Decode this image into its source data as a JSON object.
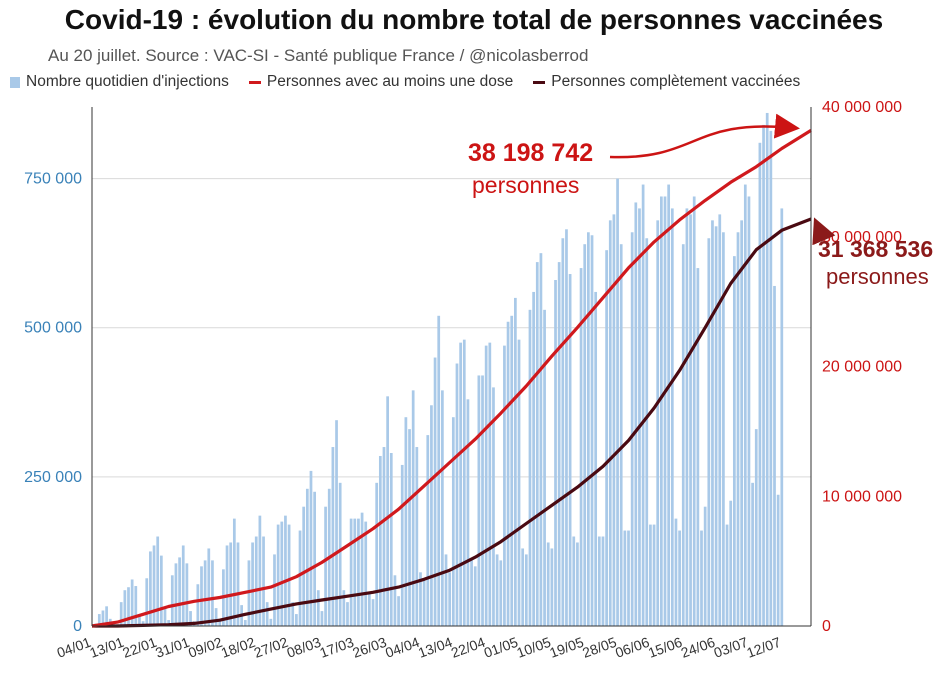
{
  "title": "Covid-19 : évolution du nombre total de personnes vaccinées",
  "subtitle": "Au 20 juillet. Source : VAC-SI - Santé publique France / @nicolasberrod",
  "colors": {
    "bars": "#a9c9e8",
    "first_dose": "#d0191d",
    "complete": "#4a0a12",
    "left_axis": "#3a82b8",
    "right_axis": "#cc1414"
  },
  "annotations": {
    "first_dose_value": "38 198 742",
    "first_dose_unit": "personnes",
    "complete_value": "31 368 536",
    "complete_unit": "personnes"
  },
  "chart_data": {
    "type": "bar+line",
    "legend": [
      {
        "key": "daily",
        "label": "Nombre quotidien d'injections",
        "marker": "bar"
      },
      {
        "key": "first",
        "label": "Personnes avec au moins une dose",
        "marker": "line"
      },
      {
        "key": "complete",
        "label": "Personnes complètement vaccinées",
        "marker": "line"
      }
    ],
    "legend_position": "top",
    "x_ticks": [
      "04/01",
      "13/01",
      "22/01",
      "31/01",
      "09/02",
      "18/02",
      "27/02",
      "08/03",
      "17/03",
      "26/03",
      "04/04",
      "13/04",
      "22/04",
      "01/05",
      "10/05",
      "19/05",
      "28/05",
      "06/06",
      "15/06",
      "24/06",
      "03/07",
      "12/07"
    ],
    "x_range_days": [
      0,
      197
    ],
    "y_left": {
      "ticks": [
        "0",
        "250 000",
        "500 000",
        "750 000"
      ],
      "tick_values": [
        0,
        250000,
        500000,
        750000
      ],
      "range": [
        0,
        870000
      ]
    },
    "y_right": {
      "ticks": [
        "0",
        "10 000 000",
        "20 000 000",
        "30 000 000",
        "40 000 000"
      ],
      "tick_values": [
        0,
        10000000,
        20000000,
        30000000,
        40000000
      ],
      "range": [
        0,
        40000000
      ]
    },
    "grid": "horizontal",
    "daily_injections_weekly_pattern": [
      [
        0,
        4000,
        20000,
        26000,
        33000,
        12000,
        3000
      ],
      [
        3000,
        40000,
        60000,
        65000,
        78000,
        67000,
        20000
      ],
      [
        8000,
        80000,
        125000,
        135000,
        150000,
        118000,
        30000
      ],
      [
        10000,
        85000,
        105000,
        115000,
        135000,
        105000,
        25000
      ],
      [
        8000,
        70000,
        100000,
        110000,
        130000,
        110000,
        30000
      ],
      [
        12000,
        95000,
        135000,
        140000,
        180000,
        140000,
        35000
      ],
      [
        10000,
        110000,
        140000,
        150000,
        185000,
        150000,
        40000
      ],
      [
        12000,
        120000,
        170000,
        175000,
        185000,
        170000,
        40000
      ],
      [
        20000,
        160000,
        200000,
        230000,
        260000,
        225000,
        60000
      ],
      [
        25000,
        200000,
        230000,
        300000,
        345000,
        240000,
        60000
      ],
      [
        40000,
        180000,
        180000,
        180000,
        190000,
        175000,
        55000
      ],
      [
        45000,
        240000,
        285000,
        300000,
        385000,
        290000,
        85000
      ],
      [
        50000,
        270000,
        350000,
        330000,
        395000,
        300000,
        90000
      ],
      [
        80000,
        320000,
        370000,
        450000,
        520000,
        395000,
        120000
      ],
      [
        90000,
        350000,
        440000,
        475000,
        480000,
        380000,
        110000
      ],
      [
        100000,
        420000,
        420000,
        470000,
        475000,
        400000,
        120000
      ],
      [
        110000,
        470000,
        510000,
        520000,
        550000,
        480000,
        130000
      ],
      [
        120000,
        530000,
        560000,
        610000,
        625000,
        530000,
        140000
      ],
      [
        130000,
        580000,
        610000,
        650000,
        665000,
        590000,
        150000
      ],
      [
        140000,
        600000,
        640000,
        660000,
        655000,
        560000,
        150000
      ],
      [
        150000,
        630000,
        680000,
        690000,
        750000,
        640000,
        160000
      ],
      [
        160000,
        660000,
        710000,
        700000,
        740000,
        650000,
        170000
      ],
      [
        170000,
        680000,
        720000,
        720000,
        740000,
        700000,
        180000
      ],
      [
        160000,
        640000,
        700000,
        690000,
        720000,
        600000,
        160000
      ],
      [
        200000,
        650000,
        680000,
        670000,
        690000,
        660000,
        170000
      ],
      [
        210000,
        620000,
        660000,
        680000,
        740000,
        720000,
        240000
      ],
      [
        330000,
        810000,
        840000,
        860000,
        830000,
        570000,
        220000
      ],
      [
        700000
      ]
    ],
    "series_first_dose": {
      "name": "Personnes avec au moins une dose",
      "points": [
        [
          0,
          0
        ],
        [
          7,
          300000
        ],
        [
          14,
          900000
        ],
        [
          21,
          1500000
        ],
        [
          28,
          1900000
        ],
        [
          35,
          2200000
        ],
        [
          42,
          2600000
        ],
        [
          49,
          3000000
        ],
        [
          56,
          3800000
        ],
        [
          63,
          4900000
        ],
        [
          70,
          6200000
        ],
        [
          77,
          7500000
        ],
        [
          84,
          9000000
        ],
        [
          91,
          10800000
        ],
        [
          98,
          12600000
        ],
        [
          105,
          14400000
        ],
        [
          112,
          16400000
        ],
        [
          119,
          18500000
        ],
        [
          126,
          20800000
        ],
        [
          133,
          23000000
        ],
        [
          140,
          25300000
        ],
        [
          147,
          27600000
        ],
        [
          154,
          29600000
        ],
        [
          161,
          31300000
        ],
        [
          168,
          32800000
        ],
        [
          175,
          34200000
        ],
        [
          182,
          35400000
        ],
        [
          189,
          36800000
        ],
        [
          197,
          38198742
        ]
      ]
    },
    "series_complete": {
      "name": "Personnes complètement vaccinées",
      "points": [
        [
          0,
          0
        ],
        [
          7,
          0
        ],
        [
          14,
          50000
        ],
        [
          21,
          100000
        ],
        [
          28,
          200000
        ],
        [
          35,
          450000
        ],
        [
          42,
          900000
        ],
        [
          49,
          1300000
        ],
        [
          56,
          1700000
        ],
        [
          63,
          2000000
        ],
        [
          70,
          2300000
        ],
        [
          77,
          2600000
        ],
        [
          84,
          3000000
        ],
        [
          91,
          3600000
        ],
        [
          98,
          4300000
        ],
        [
          105,
          5300000
        ],
        [
          112,
          6500000
        ],
        [
          119,
          7900000
        ],
        [
          126,
          9300000
        ],
        [
          133,
          10700000
        ],
        [
          140,
          12300000
        ],
        [
          147,
          14300000
        ],
        [
          154,
          16800000
        ],
        [
          161,
          19700000
        ],
        [
          168,
          23000000
        ],
        [
          175,
          26400000
        ],
        [
          182,
          29000000
        ],
        [
          189,
          30500000
        ],
        [
          197,
          31368536
        ]
      ]
    }
  }
}
